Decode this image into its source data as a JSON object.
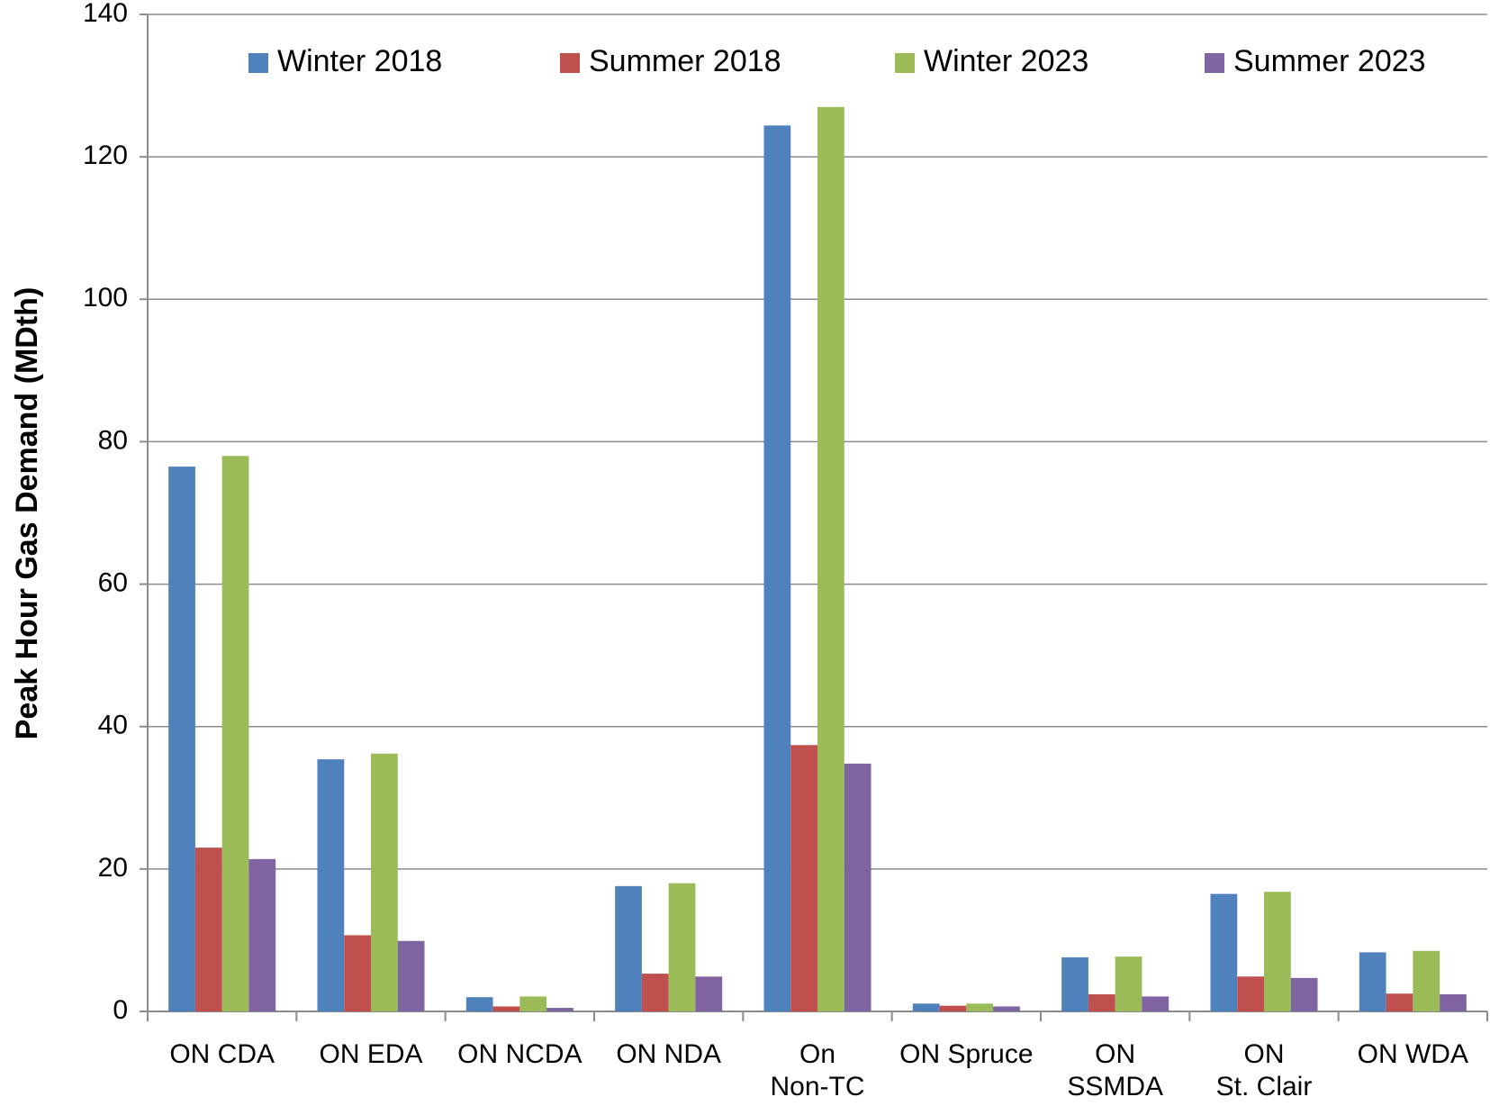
{
  "chart_data": {
    "type": "bar",
    "y_label": "Peak Hour Gas Demand (MDth)",
    "categories": [
      "ON CDA",
      "ON EDA",
      "ON NCDA",
      "ON NDA",
      "On\nNon-TC",
      "ON Spruce",
      "ON\nSSMDA",
      "ON\nSt. Clair",
      "ON WDA"
    ],
    "series": [
      {
        "name": "Winter 2018",
        "color": "#4f81bd",
        "values": [
          76.5,
          35.4,
          2.0,
          17.6,
          124.4,
          1.1,
          7.6,
          16.5,
          8.3
        ]
      },
      {
        "name": "Summer 2018",
        "color": "#c0504d",
        "values": [
          23.0,
          10.7,
          0.7,
          5.3,
          37.4,
          0.8,
          2.4,
          4.9,
          2.5
        ]
      },
      {
        "name": "Winter 2023",
        "color": "#9bbb59",
        "values": [
          78.0,
          36.2,
          2.1,
          18.0,
          127.0,
          1.1,
          7.7,
          16.8,
          8.5
        ]
      },
      {
        "name": "Summer 2023",
        "color": "#8064a2",
        "values": [
          21.4,
          9.9,
          0.5,
          4.9,
          34.8,
          0.7,
          2.1,
          4.7,
          2.4
        ]
      }
    ],
    "ylim": [
      0,
      140
    ],
    "yticks": [
      0,
      20,
      40,
      60,
      80,
      100,
      120,
      140
    ],
    "grid": true,
    "legend": "top"
  }
}
